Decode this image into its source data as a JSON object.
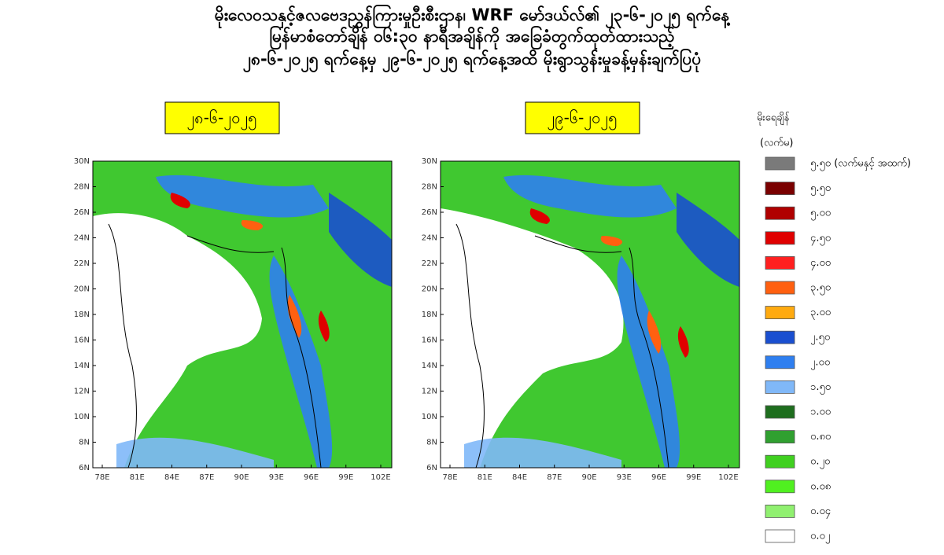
{
  "title": [
    "မိုးလေဝသနှင့်ဇလဗေဒညွှန်ကြားမှုဦးစီးဌာန၊ WRF မော်ဒယ်လ်၏ ၂၃-၆-၂၀၂၅ ရက်နေ့",
    "မြန်မာစံတော်ချိန် ၀၆:၃၀ နာရီအချိန်ကို အခြေခံတွက်ထုတ်ထားသည့်",
    "၂၈-၆-၂၀၂၅ ရက်နေ့မှ ၂၉-၆-၂၀၂၅ ရက်နေ့အထိ မိုးရွာသွန်းမှုခန့်မှန်းချက်ပြပုံ"
  ],
  "panels": [
    {
      "label": "၂၈-၆-၂၀၂၅"
    },
    {
      "label": "၂၉-၆-၂၀၂၅"
    }
  ],
  "axes": {
    "lat": [
      "30N",
      "28N",
      "26N",
      "24N",
      "22N",
      "20N",
      "18N",
      "16N",
      "14N",
      "12N",
      "10N",
      "8N",
      "6N"
    ],
    "lon": [
      "78E",
      "81E",
      "84E",
      "87E",
      "90E",
      "93E",
      "96E",
      "99E",
      "102E"
    ]
  },
  "legend": {
    "title": "မိုးရေချိန်",
    "unit": "(လက်မ)",
    "items": [
      {
        "label": "၅.၅၀ (လက်မနှင့် အထက်)",
        "color": "#7a7a7a"
      },
      {
        "label": "၅.၅၀",
        "color": "#7a0000"
      },
      {
        "label": "၅.၀၀",
        "color": "#b00000"
      },
      {
        "label": "၄.၅၀",
        "color": "#e00000"
      },
      {
        "label": "၄.၀၀",
        "color": "#ff2020"
      },
      {
        "label": "၃.၅၀",
        "color": "#ff6010"
      },
      {
        "label": "၃.၀၀",
        "color": "#ffaa10"
      },
      {
        "label": "၂.၅၀",
        "color": "#1a4fd0"
      },
      {
        "label": "၂.၀၀",
        "color": "#2f7ff0"
      },
      {
        "label": "၁.၅၀",
        "color": "#80b8f8"
      },
      {
        "label": "၁.၀၀",
        "color": "#1e6e1e"
      },
      {
        "label": "၀.၈၀",
        "color": "#30a030"
      },
      {
        "label": "၀.၂၀",
        "color": "#40d020"
      },
      {
        "label": "၀.၀၈",
        "color": "#50f020"
      },
      {
        "label": "၀.၀၄",
        "color": "#90f070"
      },
      {
        "label": "၀.၀၂",
        "color": "#ffffff"
      }
    ]
  }
}
